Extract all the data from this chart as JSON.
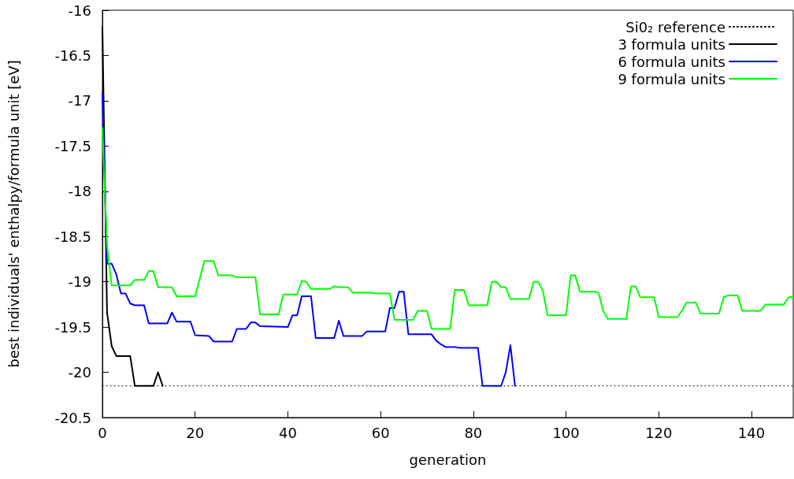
{
  "chart_data": {
    "type": "line",
    "xlabel": "generation",
    "ylabel": "best individuals' enthalpy/formula unit [eV]",
    "xlim": [
      0,
      149
    ],
    "xticks": [
      0,
      20,
      40,
      60,
      80,
      100,
      120,
      140
    ],
    "ylim": [
      -20.5,
      -16
    ],
    "yticks": [
      -20.5,
      -20,
      -19.5,
      -19,
      -18.5,
      -18,
      -17.5,
      -17,
      -16.5,
      -16
    ],
    "grid": false,
    "legend": "top right",
    "marker": "none",
    "series": [
      {
        "name": "Si0₂ reference",
        "color": "#000000",
        "line_style": "dotted",
        "x": [
          0,
          149
        ],
        "values": [
          -20.15,
          -20.15
        ]
      },
      {
        "name": "3 formula units",
        "color": "#000000",
        "x": [
          0,
          1,
          2,
          3,
          6,
          7,
          11,
          12,
          13
        ],
        "values": [
          -16.18,
          -19.34,
          -19.71,
          -19.82,
          -19.82,
          -20.15,
          -20.15,
          -20.0,
          -20.15
        ]
      },
      {
        "name": "6 formula units",
        "color": "#0000ff",
        "x": [
          0,
          1,
          2,
          3,
          4,
          5,
          6,
          7,
          9,
          10,
          14,
          15,
          16,
          19,
          20,
          23,
          24,
          28,
          29,
          31,
          32,
          33,
          34,
          40,
          41,
          42,
          43,
          45,
          46,
          50,
          51,
          52,
          56,
          57,
          61,
          62,
          63,
          64,
          65,
          66,
          71,
          72,
          73,
          74,
          76,
          77,
          81,
          82,
          86,
          87,
          88,
          89
        ],
        "values": [
          -16.92,
          -18.8,
          -18.8,
          -18.92,
          -19.13,
          -19.13,
          -19.24,
          -19.26,
          -19.26,
          -19.46,
          -19.46,
          -19.34,
          -19.44,
          -19.44,
          -19.59,
          -19.6,
          -19.66,
          -19.66,
          -19.52,
          -19.52,
          -19.45,
          -19.45,
          -19.49,
          -19.5,
          -19.37,
          -19.37,
          -19.16,
          -19.16,
          -19.62,
          -19.62,
          -19.43,
          -19.6,
          -19.6,
          -19.55,
          -19.55,
          -19.29,
          -19.29,
          -19.11,
          -19.11,
          -19.58,
          -19.58,
          -19.65,
          -19.69,
          -19.72,
          -19.72,
          -19.73,
          -19.73,
          -20.15,
          -20.15,
          -20.0,
          -19.7,
          -20.15
        ]
      },
      {
        "name": "9 formula units",
        "color": "#00ff00",
        "x": [
          0,
          1,
          2,
          6,
          7,
          9,
          10,
          11,
          12,
          15,
          16,
          20,
          22,
          24,
          25,
          28,
          29,
          33,
          34,
          38,
          39,
          42,
          43,
          44,
          45,
          49,
          50,
          51,
          53,
          54,
          58,
          59,
          62,
          63,
          67,
          68,
          70,
          71,
          75,
          76,
          78,
          79,
          83,
          84,
          85,
          86,
          87,
          88,
          92,
          93,
          94,
          95,
          96,
          100,
          101,
          102,
          103,
          106,
          107,
          108,
          109,
          113,
          114,
          115,
          116,
          119,
          120,
          124,
          125,
          126,
          128,
          129,
          133,
          134,
          135,
          137,
          138,
          142,
          143,
          147,
          148,
          149
        ],
        "values": [
          -17.3,
          -18.6,
          -19.04,
          -19.04,
          -18.98,
          -18.98,
          -18.88,
          -18.88,
          -19.06,
          -19.06,
          -19.16,
          -19.16,
          -18.77,
          -18.77,
          -18.93,
          -18.93,
          -18.95,
          -18.95,
          -19.36,
          -19.36,
          -19.14,
          -19.14,
          -18.99,
          -19.0,
          -19.08,
          -19.08,
          -19.05,
          -19.06,
          -19.06,
          -19.12,
          -19.12,
          -19.13,
          -19.13,
          -19.42,
          -19.42,
          -19.32,
          -19.32,
          -19.52,
          -19.52,
          -19.09,
          -19.09,
          -19.26,
          -19.26,
          -19.0,
          -19.0,
          -19.06,
          -19.06,
          -19.19,
          -19.19,
          -19.0,
          -19.0,
          -19.1,
          -19.37,
          -19.37,
          -18.93,
          -18.93,
          -19.11,
          -19.11,
          -19.12,
          -19.32,
          -19.41,
          -19.41,
          -19.05,
          -19.05,
          -19.17,
          -19.17,
          -19.39,
          -19.39,
          -19.32,
          -19.23,
          -19.23,
          -19.35,
          -19.35,
          -19.17,
          -19.15,
          -19.15,
          -19.32,
          -19.32,
          -19.25,
          -19.25,
          -19.17,
          -19.17
        ]
      }
    ]
  }
}
